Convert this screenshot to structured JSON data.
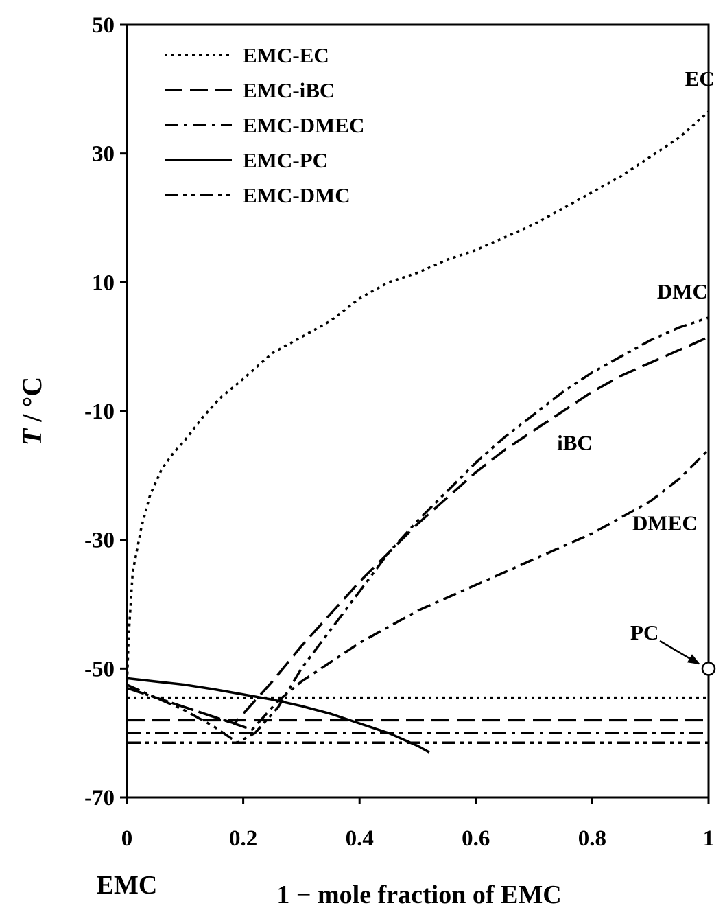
{
  "chart_data": {
    "type": "line",
    "title": "",
    "xlabel": "1 − mole fraction of EMC",
    "x_left_label": "EMC",
    "ylabel_italic": "T",
    "ylabel_rest": " / °C",
    "xlim": [
      0,
      1
    ],
    "ylim": [
      -70,
      50
    ],
    "x_ticks": [
      0,
      0.2,
      0.4,
      0.6,
      0.8,
      1
    ],
    "x_tick_labels": [
      "0",
      "0.2",
      "0.4",
      "0.6",
      "0.8",
      "1"
    ],
    "y_ticks": [
      -70,
      -50,
      -30,
      -10,
      10,
      30,
      50
    ],
    "y_tick_labels": [
      "-70",
      "-50",
      "-30",
      "-10",
      "10",
      "30",
      "50"
    ],
    "grid": false,
    "legend_position": "top-left",
    "series": [
      {
        "name": "EMC-EC",
        "dash": "dotted",
        "liquidus": [
          [
            0,
            -53
          ],
          [
            0.003,
            -45
          ],
          [
            0.01,
            -35
          ],
          [
            0.025,
            -28
          ],
          [
            0.04,
            -23
          ],
          [
            0.06,
            -19
          ],
          [
            0.08,
            -16.5
          ],
          [
            0.1,
            -14.5
          ],
          [
            0.13,
            -11
          ],
          [
            0.16,
            -8
          ],
          [
            0.2,
            -5
          ],
          [
            0.25,
            -1
          ],
          [
            0.3,
            1.5
          ],
          [
            0.35,
            4
          ],
          [
            0.4,
            7.5
          ],
          [
            0.45,
            10
          ],
          [
            0.5,
            11.5
          ],
          [
            0.55,
            13.5
          ],
          [
            0.6,
            15
          ],
          [
            0.65,
            17
          ],
          [
            0.7,
            19
          ],
          [
            0.75,
            21.5
          ],
          [
            0.8,
            24
          ],
          [
            0.85,
            26.5
          ],
          [
            0.9,
            29.5
          ],
          [
            0.95,
            32.5
          ],
          [
            1.0,
            36.5
          ]
        ],
        "solidus": [
          [
            0,
            -54.5
          ],
          [
            1,
            -54.5
          ]
        ]
      },
      {
        "name": "EMC-iBC",
        "dash": "long-dash",
        "liquidus": [
          [
            0,
            -53
          ],
          [
            0.05,
            -54.5
          ],
          [
            0.1,
            -56
          ],
          [
            0.15,
            -57.5
          ],
          [
            0.185,
            -58.5
          ],
          [
            0.25,
            -52
          ],
          [
            0.3,
            -46.5
          ],
          [
            0.35,
            -41.5
          ],
          [
            0.4,
            -36.5
          ],
          [
            0.45,
            -32
          ],
          [
            0.5,
            -27.5
          ],
          [
            0.55,
            -23.5
          ],
          [
            0.6,
            -19.5
          ],
          [
            0.65,
            -16
          ],
          [
            0.7,
            -13
          ],
          [
            0.75,
            -10
          ],
          [
            0.8,
            -7
          ],
          [
            0.85,
            -4.5
          ],
          [
            0.9,
            -2.5
          ],
          [
            0.95,
            -0.5
          ],
          [
            1.0,
            1.5
          ]
        ],
        "solidus": [
          [
            0,
            -58
          ],
          [
            1,
            -58
          ]
        ]
      },
      {
        "name": "EMC-DMEC",
        "dash": "dash-dot",
        "liquidus": [
          [
            0,
            -53
          ],
          [
            0.05,
            -54.5
          ],
          [
            0.1,
            -56
          ],
          [
            0.15,
            -57.5
          ],
          [
            0.2,
            -59
          ],
          [
            0.215,
            -59.5
          ],
          [
            0.26,
            -55
          ],
          [
            0.3,
            -52
          ],
          [
            0.35,
            -49
          ],
          [
            0.4,
            -46
          ],
          [
            0.45,
            -43.5
          ],
          [
            0.5,
            -41
          ],
          [
            0.55,
            -39
          ],
          [
            0.6,
            -37
          ],
          [
            0.65,
            -35
          ],
          [
            0.7,
            -33
          ],
          [
            0.75,
            -31
          ],
          [
            0.8,
            -29
          ],
          [
            0.85,
            -26.5
          ],
          [
            0.9,
            -24
          ],
          [
            0.95,
            -20.5
          ],
          [
            1.0,
            -16
          ]
        ],
        "solidus": [
          [
            0,
            -60
          ],
          [
            1,
            -60
          ]
        ]
      },
      {
        "name": "EMC-PC",
        "dash": "solid",
        "liquidus": [
          [
            0,
            -51.5
          ],
          [
            0.05,
            -52
          ],
          [
            0.1,
            -52.5
          ],
          [
            0.15,
            -53.2
          ],
          [
            0.2,
            -54
          ],
          [
            0.25,
            -54.8
          ],
          [
            0.3,
            -55.8
          ],
          [
            0.35,
            -57
          ],
          [
            0.4,
            -58.5
          ],
          [
            0.45,
            -60
          ],
          [
            0.5,
            -62
          ],
          [
            0.52,
            -63
          ]
        ],
        "solidus": []
      },
      {
        "name": "EMC-DMC",
        "dash": "dash-dot-dot",
        "liquidus": [
          [
            0,
            -52.5
          ],
          [
            0.05,
            -54.5
          ],
          [
            0.1,
            -56.5
          ],
          [
            0.15,
            -59
          ],
          [
            0.19,
            -61.5
          ],
          [
            0.22,
            -60
          ],
          [
            0.26,
            -56
          ],
          [
            0.3,
            -50
          ],
          [
            0.35,
            -44
          ],
          [
            0.4,
            -38
          ],
          [
            0.45,
            -32
          ],
          [
            0.5,
            -27
          ],
          [
            0.55,
            -22.5
          ],
          [
            0.6,
            -18
          ],
          [
            0.65,
            -14
          ],
          [
            0.7,
            -10.5
          ],
          [
            0.75,
            -7
          ],
          [
            0.8,
            -4
          ],
          [
            0.85,
            -1.5
          ],
          [
            0.9,
            1
          ],
          [
            0.95,
            3
          ],
          [
            1.0,
            4.5
          ]
        ],
        "solidus": [
          [
            0,
            -61.5
          ],
          [
            1,
            -61.5
          ]
        ]
      }
    ],
    "curve_labels": [
      {
        "text": "EC",
        "x": 0.985,
        "y": 40.5
      },
      {
        "text": "DMC",
        "x": 0.955,
        "y": 7.5
      },
      {
        "text": "iBC",
        "x": 0.77,
        "y": -16
      },
      {
        "text": "DMEC",
        "x": 0.925,
        "y": -28.5
      },
      {
        "text": "PC",
        "x": 0.89,
        "y": -45.5
      }
    ],
    "pc_pure_point": {
      "x": 1.0,
      "y": -50,
      "label": "PC"
    }
  }
}
